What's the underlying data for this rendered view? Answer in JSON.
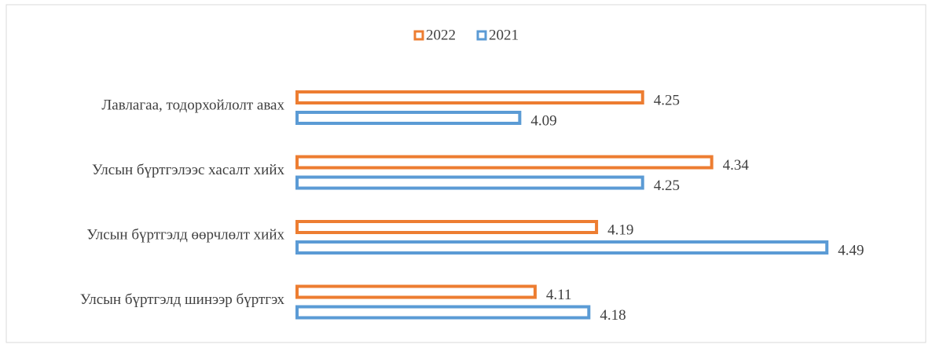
{
  "chart_data": {
    "type": "bar",
    "orientation": "horizontal",
    "categories": [
      "Лавлагаа, тодорхойлолт авах",
      "Улсын бүртгэлээс хасалт хийх",
      "Улсын бүртгэлд өөрчлөлт хийх",
      "Улсын бүртгэлд шинээр бүртгэх"
    ],
    "series": [
      {
        "name": "2022",
        "color": "#ed7d31",
        "values": [
          4.25,
          4.34,
          4.19,
          4.11
        ]
      },
      {
        "name": "2021",
        "color": "#5b9bd5",
        "values": [
          4.09,
          4.25,
          4.49,
          4.18
        ]
      }
    ],
    "xlim": [
      3.8,
      4.5
    ],
    "legend": "top"
  }
}
